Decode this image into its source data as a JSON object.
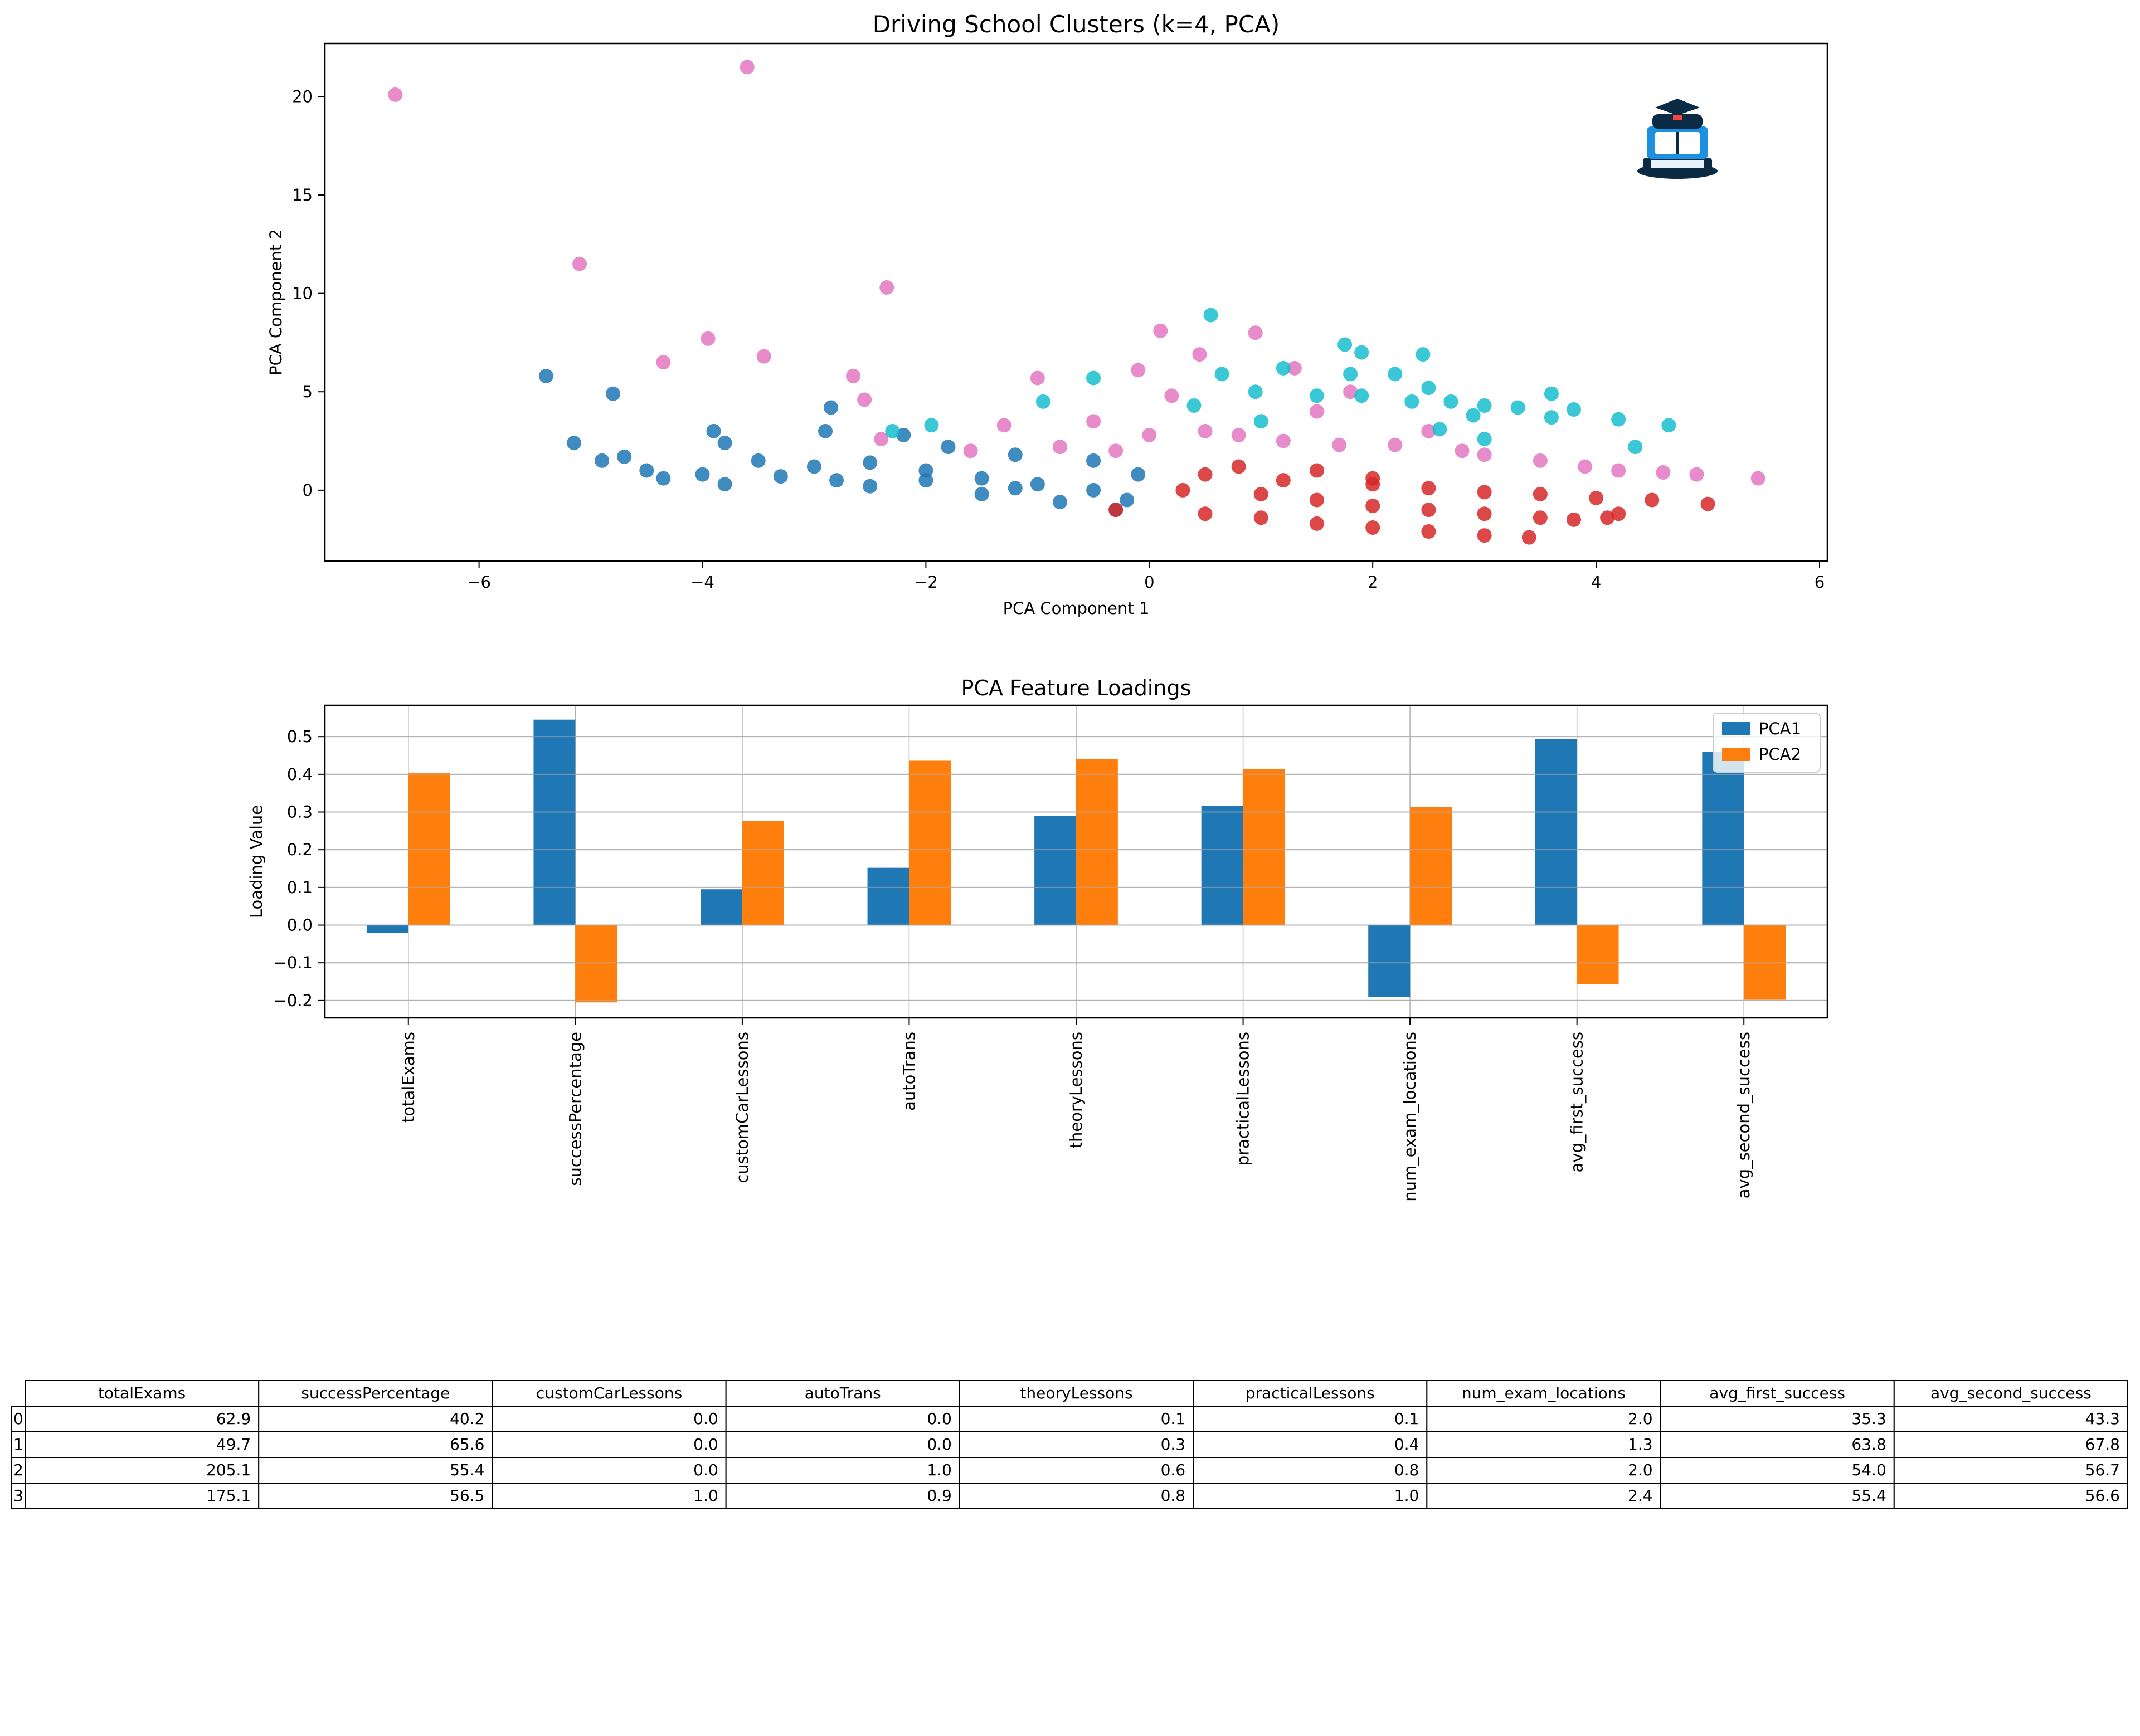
{
  "chart_data": [
    {
      "type": "scatter",
      "title": "Driving School Clusters (k=4, PCA)",
      "xlabel": "PCA Component 1",
      "ylabel": "PCA Component 2",
      "xlim": [
        -7.38,
        6.07
      ],
      "ylim": [
        -3.6,
        22.7
      ],
      "xticks": [
        -6,
        -4,
        -2,
        0,
        2,
        4,
        6
      ],
      "xtick_labels": [
        "−6",
        "−4",
        "−2",
        "0",
        "2",
        "4",
        "6"
      ],
      "yticks": [
        0,
        5,
        10,
        15,
        20
      ],
      "ytick_labels": [
        "0",
        "5",
        "10",
        "15",
        "20"
      ],
      "grid": false,
      "has_logo": true,
      "series": [
        {
          "color": "#1f77b4",
          "points": [
            [
              -5.4,
              5.8
            ],
            [
              -4.8,
              4.9
            ],
            [
              -5.15,
              2.4
            ],
            [
              -4.9,
              1.5
            ],
            [
              -4.7,
              1.7
            ],
            [
              -4.35,
              0.6
            ],
            [
              -3.9,
              3
            ],
            [
              -3.8,
              2.4
            ],
            [
              -2.85,
              4.2
            ],
            [
              -2.9,
              3
            ],
            [
              -3.5,
              1.5
            ],
            [
              -3,
              1.2
            ],
            [
              -2.5,
              1.4
            ],
            [
              -2,
              1
            ],
            [
              -1.5,
              0.6
            ],
            [
              -1,
              0.3
            ],
            [
              -0.5,
              0
            ],
            [
              -0.2,
              -0.5
            ],
            [
              -3.8,
              0.3
            ],
            [
              -2.5,
              0.2
            ],
            [
              -1.5,
              -0.2
            ],
            [
              -0.8,
              -0.6
            ],
            [
              -0.3,
              -1
            ],
            [
              -4,
              0.8
            ],
            [
              -2.2,
              2.8
            ],
            [
              -1.8,
              2.2
            ],
            [
              -1.2,
              1.8
            ],
            [
              -0.5,
              1.5
            ],
            [
              -3.3,
              0.7
            ],
            [
              -2.8,
              0.5
            ],
            [
              -2,
              0.5
            ],
            [
              -1.2,
              0.1
            ],
            [
              -4.5,
              1.0
            ],
            [
              -0.1,
              0.8
            ]
          ]
        },
        {
          "color": "#d62728",
          "points": [
            [
              -0.3,
              -1
            ],
            [
              0.5,
              -1.2
            ],
            [
              1,
              -1.4
            ],
            [
              1.5,
              -1.7
            ],
            [
              2,
              -1.9
            ],
            [
              2.5,
              -2.1
            ],
            [
              3,
              -2.3
            ],
            [
              3.4,
              -2.4
            ],
            [
              0.3,
              0
            ],
            [
              1,
              -0.2
            ],
            [
              1.5,
              -0.5
            ],
            [
              2,
              -0.8
            ],
            [
              2.5,
              -1
            ],
            [
              3,
              -1.2
            ],
            [
              3.5,
              -1.4
            ],
            [
              3.8,
              -1.5
            ],
            [
              0.5,
              0.8
            ],
            [
              1.2,
              0.5
            ],
            [
              2,
              0.3
            ],
            [
              2.5,
              0.1
            ],
            [
              3,
              -0.1
            ],
            [
              3.5,
              -0.2
            ],
            [
              4,
              -0.4
            ],
            [
              4.5,
              -0.5
            ],
            [
              5.0,
              -0.7
            ],
            [
              4.1,
              -1.4
            ],
            [
              4.2,
              -1.2
            ],
            [
              1.5,
              1
            ],
            [
              2,
              0.6
            ],
            [
              0.8,
              1.2
            ]
          ]
        },
        {
          "color": "#e377c2",
          "points": [
            [
              -6.75,
              20.1
            ],
            [
              -3.6,
              21.5
            ],
            [
              -5.1,
              11.5
            ],
            [
              -2.35,
              10.3
            ],
            [
              -3.95,
              7.7
            ],
            [
              -4.35,
              6.5
            ],
            [
              -3.45,
              6.8
            ],
            [
              -2.65,
              5.8
            ],
            [
              -2.55,
              4.6
            ],
            [
              -1,
              5.7
            ],
            [
              0.1,
              8.1
            ],
            [
              0.95,
              8
            ],
            [
              -0.1,
              6.1
            ],
            [
              0.45,
              6.9
            ],
            [
              1.3,
              6.2
            ],
            [
              5.45,
              0.6
            ],
            [
              4.9,
              0.8
            ],
            [
              4.6,
              0.9
            ],
            [
              3.9,
              1.2
            ],
            [
              4.2,
              1.0
            ],
            [
              2.5,
              3
            ],
            [
              1.5,
              4
            ],
            [
              0.5,
              3
            ],
            [
              -0.5,
              3.5
            ],
            [
              -1.3,
              3.3
            ],
            [
              -0.8,
              2.2
            ],
            [
              1.2,
              2.5
            ],
            [
              2.2,
              2.3
            ],
            [
              3.0,
              1.8
            ],
            [
              3.5,
              1.5
            ],
            [
              0.2,
              4.8
            ],
            [
              1.8,
              5
            ],
            [
              0,
              2.8
            ],
            [
              -0.3,
              2
            ],
            [
              0.8,
              2.8
            ],
            [
              1.7,
              2.3
            ],
            [
              2.8,
              2.0
            ],
            [
              -1.6,
              2.0
            ],
            [
              -2.4,
              2.6
            ]
          ]
        },
        {
          "color": "#17becf",
          "points": [
            [
              0.55,
              8.9
            ],
            [
              1.75,
              7.4
            ],
            [
              1.9,
              7.0
            ],
            [
              2.45,
              6.9
            ],
            [
              1.8,
              5.9
            ],
            [
              0.65,
              5.9
            ],
            [
              0.95,
              5
            ],
            [
              1.2,
              6.2
            ],
            [
              2.2,
              5.9
            ],
            [
              2.5,
              5.2
            ],
            [
              2.7,
              4.5
            ],
            [
              3,
              4.3
            ],
            [
              3.3,
              4.2
            ],
            [
              3.6,
              4.9
            ],
            [
              3.8,
              4.1
            ],
            [
              4.2,
              3.6
            ],
            [
              4.65,
              3.3
            ],
            [
              4.35,
              2.2
            ],
            [
              3.6,
              3.7
            ],
            [
              2.9,
              3.8
            ],
            [
              2.35,
              4.5
            ],
            [
              1.5,
              4.8
            ],
            [
              -0.95,
              4.5
            ],
            [
              -0.5,
              5.7
            ],
            [
              -2.3,
              3
            ],
            [
              -1.95,
              3.3
            ],
            [
              1.0,
              3.5
            ],
            [
              1.9,
              4.8
            ],
            [
              2.6,
              3.1
            ],
            [
              3.0,
              2.6
            ],
            [
              0.4,
              4.3
            ]
          ]
        }
      ]
    },
    {
      "type": "bar",
      "title": "PCA Feature Loadings",
      "xlabel": "",
      "ylabel": "Loading Value",
      "ylim": [
        -0.246,
        0.583
      ],
      "yticks": [
        -0.2,
        -0.1,
        0.0,
        0.1,
        0.2,
        0.3,
        0.4,
        0.5
      ],
      "ytick_labels": [
        "−0.2",
        "−0.1",
        "0.0",
        "0.1",
        "0.2",
        "0.3",
        "0.4",
        "0.5"
      ],
      "grid": true,
      "legend": "top-right",
      "categories": [
        "totalExams",
        "successPercentage",
        "customCarLessons",
        "autoTrans",
        "theoryLessons",
        "practicalLessons",
        "num_exam_locations",
        "avg_first_success",
        "avg_second_success"
      ],
      "series": [
        {
          "name": "PCA1",
          "color": "#1f77b4",
          "values": [
            -0.02,
            0.545,
            0.095,
            0.152,
            0.29,
            0.317,
            -0.19,
            0.493,
            0.459
          ]
        },
        {
          "name": "PCA2",
          "color": "#ff7f0e",
          "values": [
            0.404,
            -0.205,
            0.276,
            0.436,
            0.441,
            0.414,
            0.313,
            -0.157,
            -0.198
          ]
        }
      ]
    }
  ],
  "table": {
    "columns": [
      "totalExams",
      "successPercentage",
      "customCarLessons",
      "autoTrans",
      "theoryLessons",
      "practicalLessons",
      "num_exam_locations",
      "avg_first_success",
      "avg_second_success"
    ],
    "rows": [
      {
        "index": "0",
        "cells": [
          "62.9",
          "40.2",
          "0.0",
          "0.0",
          "0.1",
          "0.1",
          "2.0",
          "35.3",
          "43.3"
        ]
      },
      {
        "index": "1",
        "cells": [
          "49.7",
          "65.6",
          "0.0",
          "0.0",
          "0.3",
          "0.4",
          "1.3",
          "63.8",
          "67.8"
        ]
      },
      {
        "index": "2",
        "cells": [
          "205.1",
          "55.4",
          "0.0",
          "1.0",
          "0.6",
          "0.8",
          "2.0",
          "54.0",
          "56.7"
        ]
      },
      {
        "index": "3",
        "cells": [
          "175.1",
          "56.5",
          "1.0",
          "0.9",
          "0.8",
          "1.0",
          "2.4",
          "55.4",
          "56.6"
        ]
      }
    ]
  }
}
